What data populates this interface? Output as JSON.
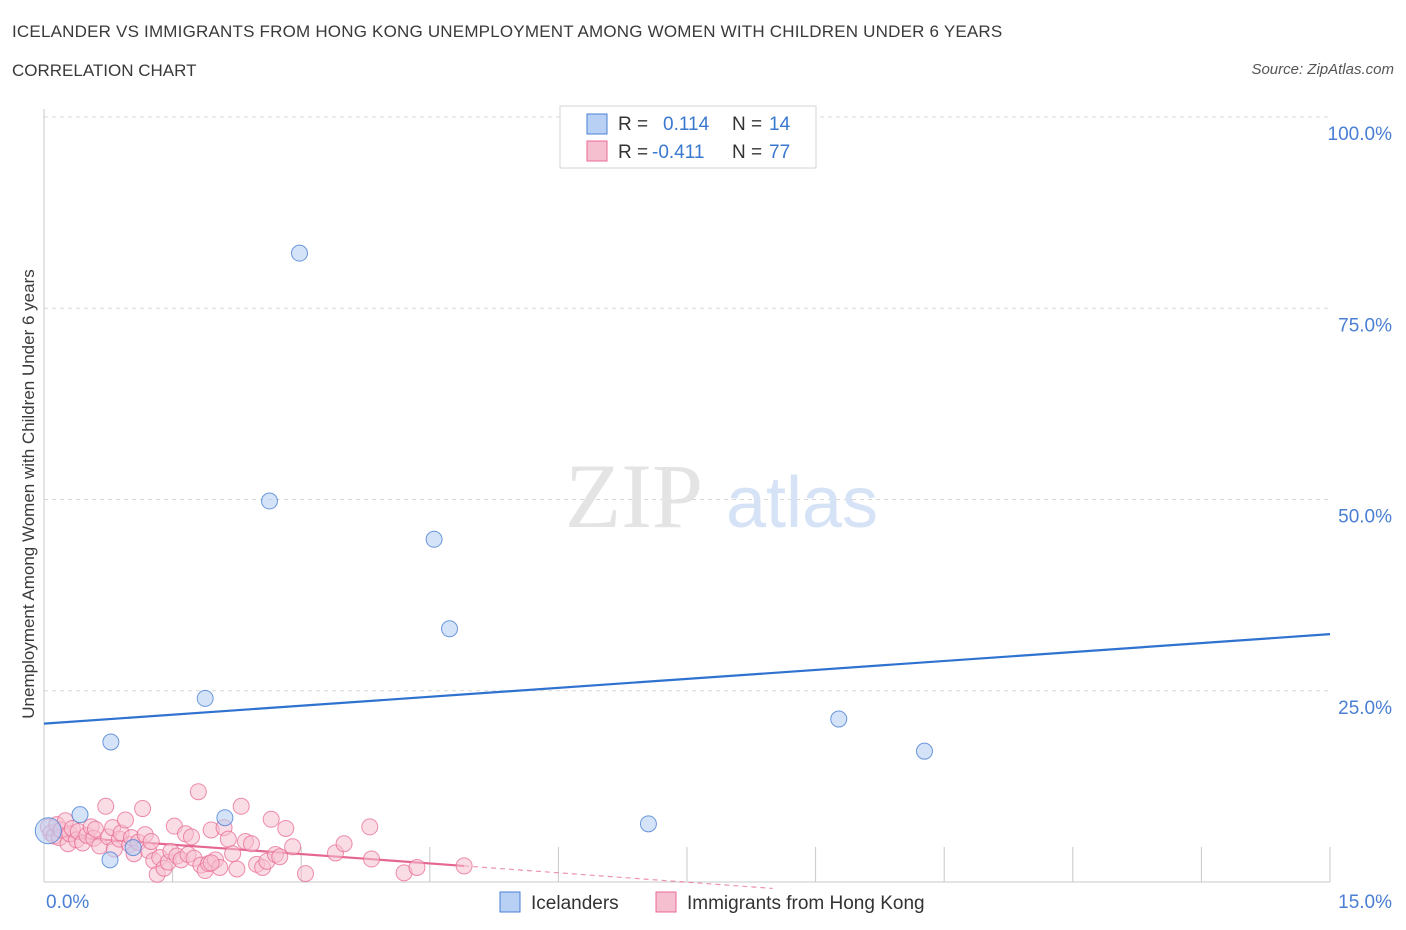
{
  "header": {
    "title": "ICELANDER VS IMMIGRANTS FROM HONG KONG UNEMPLOYMENT AMONG WOMEN WITH CHILDREN UNDER 6 YEARS",
    "subtitle": "CORRELATION CHART",
    "source": "Source: ZipAtlas.com"
  },
  "watermark": {
    "zip": "ZIP",
    "atlas": "atlas"
  },
  "legend_box": {
    "rows": [
      {
        "r_label": "R =",
        "r_value": "0.114",
        "n_label": "N =",
        "n_value": "14"
      },
      {
        "r_label": "R =",
        "r_value": "-0.411",
        "n_label": "N =",
        "n_value": "77"
      }
    ]
  },
  "colors": {
    "blue": "#4a7fd4",
    "blue_fill": "#b8d0f3",
    "blue_line": "#2f72d0",
    "pink": "#e86a93",
    "pink_fill": "#f6bfd0",
    "pink_line": "#e5678f",
    "axis_text": "#4a7fd4",
    "grid": "#d8d8d8"
  },
  "chart_data": {
    "type": "scatter",
    "title": "ICELANDER VS IMMIGRANTS FROM HONG KONG UNEMPLOYMENT AMONG WOMEN WITH CHILDREN UNDER 6 YEARS",
    "xlabel": "",
    "ylabel": "Unemployment Among Women with Children Under 6 years",
    "xlim": [
      0,
      15
    ],
    "ylim": [
      0,
      100
    ],
    "x_tick_labels": [
      "0.0%",
      "15.0%"
    ],
    "y_tick_values": [
      25,
      50,
      75,
      100
    ],
    "y_tick_labels": [
      "25.0%",
      "50.0%",
      "75.0%",
      "100.0%"
    ],
    "legend": [
      "Icelanders",
      "Immigrants from Hong Kong"
    ],
    "series": [
      {
        "name": "Icelanders",
        "r": 0.114,
        "n": 14,
        "points": [
          [
            0.05,
            6.7
          ],
          [
            0.42,
            8.8
          ],
          [
            0.78,
            18.3
          ],
          [
            1.88,
            24.0
          ],
          [
            2.63,
            49.8
          ],
          [
            2.98,
            82.2
          ],
          [
            4.55,
            44.8
          ],
          [
            4.73,
            33.1
          ],
          [
            7.05,
            7.6
          ],
          [
            9.27,
            21.3
          ],
          [
            10.27,
            17.1
          ],
          [
            0.77,
            2.9
          ],
          [
            1.04,
            4.5
          ],
          [
            2.11,
            8.4
          ]
        ],
        "trend": {
          "x0": 0,
          "y0": 20.7,
          "x1": 15,
          "y1": 32.4,
          "dashed_to": 15
        }
      },
      {
        "name": "Immigrants from Hong Kong",
        "r": -0.411,
        "n": 77,
        "points": [
          [
            0.05,
            7.2
          ],
          [
            0.08,
            6.4
          ],
          [
            0.12,
            6.0
          ],
          [
            0.15,
            7.5
          ],
          [
            0.18,
            5.8
          ],
          [
            0.2,
            6.8
          ],
          [
            0.25,
            8.0
          ],
          [
            0.28,
            5.0
          ],
          [
            0.3,
            6.3
          ],
          [
            0.33,
            7.0
          ],
          [
            0.38,
            5.5
          ],
          [
            0.4,
            6.6
          ],
          [
            0.45,
            5.1
          ],
          [
            0.5,
            6.1
          ],
          [
            0.55,
            7.2
          ],
          [
            0.58,
            5.7
          ],
          [
            0.6,
            6.9
          ],
          [
            0.65,
            4.7
          ],
          [
            0.72,
            9.9
          ],
          [
            0.75,
            5.9
          ],
          [
            0.8,
            7.1
          ],
          [
            0.82,
            4.3
          ],
          [
            0.88,
            5.6
          ],
          [
            0.9,
            6.4
          ],
          [
            0.95,
            8.1
          ],
          [
            1.0,
            4.9
          ],
          [
            1.02,
            5.8
          ],
          [
            1.05,
            3.7
          ],
          [
            1.1,
            5.2
          ],
          [
            1.15,
            9.6
          ],
          [
            1.18,
            6.2
          ],
          [
            1.22,
            4.1
          ],
          [
            1.25,
            5.3
          ],
          [
            1.28,
            2.8
          ],
          [
            1.32,
            1.0
          ],
          [
            1.35,
            3.2
          ],
          [
            1.4,
            1.8
          ],
          [
            1.45,
            2.6
          ],
          [
            1.48,
            4.0
          ],
          [
            1.52,
            7.3
          ],
          [
            1.55,
            3.4
          ],
          [
            1.6,
            2.9
          ],
          [
            1.65,
            6.3
          ],
          [
            1.68,
            3.6
          ],
          [
            1.72,
            5.9
          ],
          [
            1.75,
            3.1
          ],
          [
            1.8,
            11.8
          ],
          [
            1.83,
            2.2
          ],
          [
            1.88,
            1.5
          ],
          [
            1.92,
            2.4
          ],
          [
            1.95,
            6.8
          ],
          [
            2.0,
            2.9
          ],
          [
            2.05,
            1.9
          ],
          [
            2.1,
            7.1
          ],
          [
            2.15,
            5.6
          ],
          [
            2.2,
            3.7
          ],
          [
            2.25,
            1.7
          ],
          [
            2.3,
            9.9
          ],
          [
            2.35,
            5.3
          ],
          [
            2.42,
            5.0
          ],
          [
            2.48,
            2.3
          ],
          [
            2.55,
            1.9
          ],
          [
            2.6,
            2.7
          ],
          [
            2.65,
            8.2
          ],
          [
            2.7,
            3.6
          ],
          [
            2.75,
            3.3
          ],
          [
            2.82,
            7.0
          ],
          [
            2.9,
            4.6
          ],
          [
            3.05,
            1.1
          ],
          [
            3.4,
            3.8
          ],
          [
            3.5,
            5.0
          ],
          [
            3.8,
            7.2
          ],
          [
            3.82,
            3.0
          ],
          [
            4.2,
            1.2
          ],
          [
            4.35,
            1.9
          ],
          [
            4.9,
            2.1
          ],
          [
            1.95,
            2.5
          ]
        ],
        "trend": {
          "x0": 0,
          "y0": 6.1,
          "x1": 4.9,
          "y1": 2.1,
          "dashed_to": 8.5
        }
      }
    ]
  }
}
